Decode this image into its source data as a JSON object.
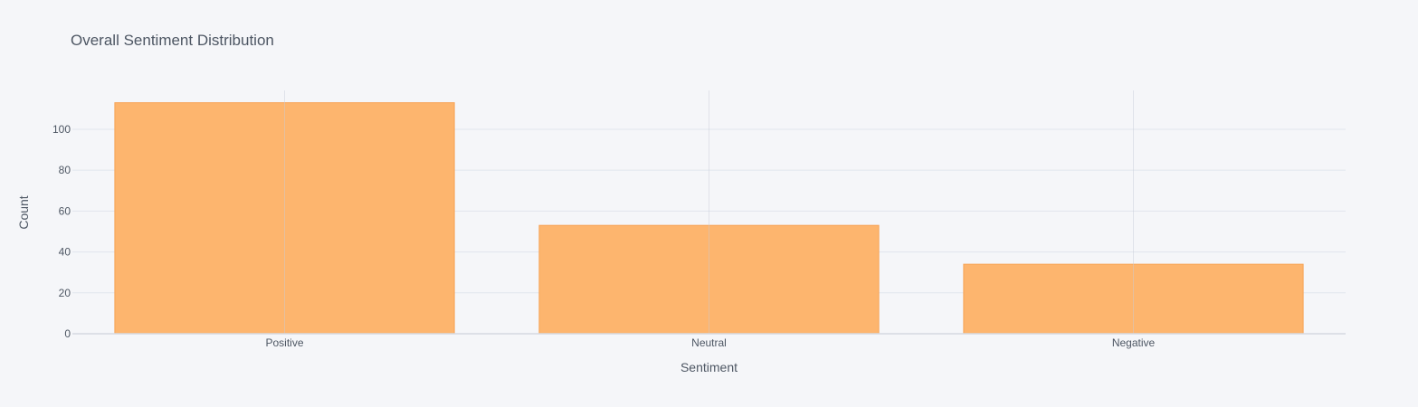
{
  "chart_data": {
    "type": "bar",
    "title": "Overall Sentiment Distribution",
    "xlabel": "Sentiment",
    "ylabel": "Count",
    "categories": [
      "Positive",
      "Neutral",
      "Negative"
    ],
    "values": [
      113,
      53,
      34
    ],
    "ylim": [
      0,
      119
    ],
    "yticks": [
      0,
      20,
      40,
      60,
      80,
      100
    ],
    "grid": true,
    "legend": "none",
    "colors": {
      "bar_fill": "#fdb56e",
      "bar_stroke": "#f7a356",
      "background": "#f5f6f9",
      "text": "#4d5663",
      "grid": "#e1e5ed"
    }
  }
}
